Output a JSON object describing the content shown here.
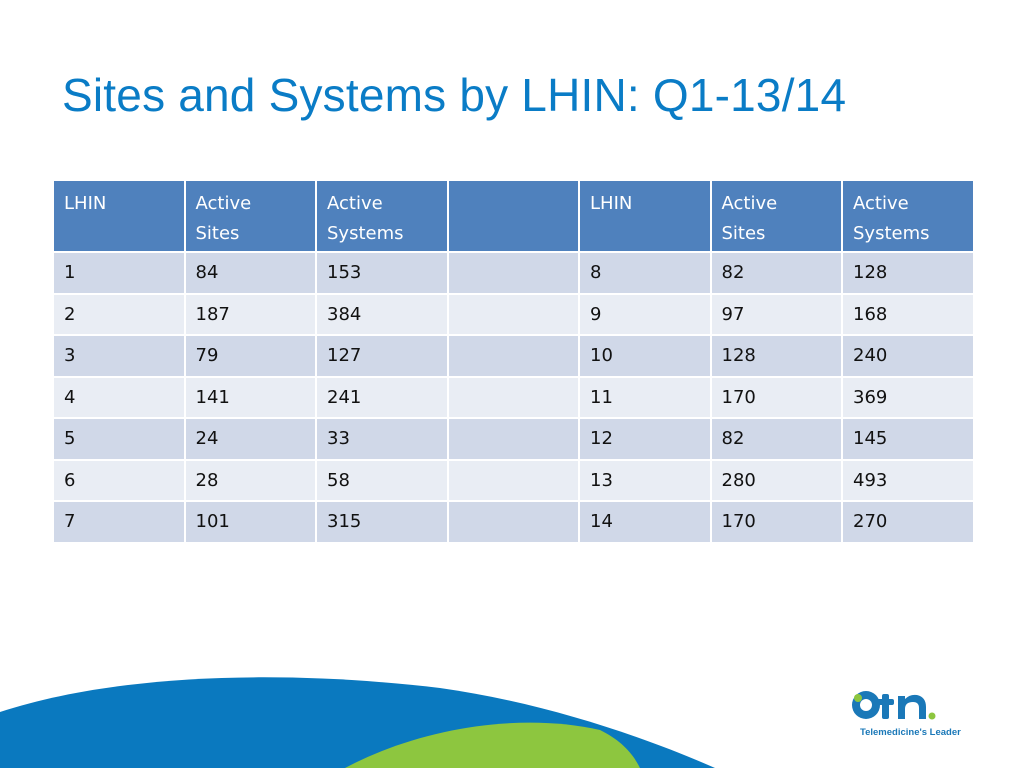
{
  "slide": {
    "title": "Sites and Systems by LHIN: Q1-13/14",
    "colors": {
      "title": "#0a7cc6",
      "header": "#4f81bd",
      "row_odd": "#d0d8e8",
      "row_even": "#e9edf4",
      "arc_blue": "#0a79bf",
      "arc_green": "#8dc63f"
    }
  },
  "table": {
    "headers": [
      {
        "line1": "LHIN",
        "line2": ""
      },
      {
        "line1": "Active",
        "line2": "Sites"
      },
      {
        "line1": "Active",
        "line2": "Systems"
      },
      {
        "line1": "",
        "line2": ""
      },
      {
        "line1": "LHIN",
        "line2": ""
      },
      {
        "line1": "Active",
        "line2": "Sites"
      },
      {
        "line1": "Active",
        "line2": "Systems"
      }
    ],
    "rows": [
      [
        "1",
        "84",
        "153",
        "",
        "8",
        "82",
        "128"
      ],
      [
        "2",
        "187",
        "384",
        "",
        "9",
        "97",
        "168"
      ],
      [
        "3",
        "79",
        "127",
        "",
        "10",
        "128",
        "240"
      ],
      [
        "4",
        "141",
        "241",
        "",
        "11",
        "170",
        "369"
      ],
      [
        "5",
        "24",
        "33",
        "",
        "12",
        "82",
        "145"
      ],
      [
        "6",
        "28",
        "58",
        "",
        "13",
        "280",
        "493"
      ],
      [
        "7",
        "101",
        "315",
        "",
        "14",
        "170",
        "270"
      ]
    ]
  },
  "logo": {
    "icon": "otn-logo",
    "tagline": "Telemedicine's Leader"
  }
}
